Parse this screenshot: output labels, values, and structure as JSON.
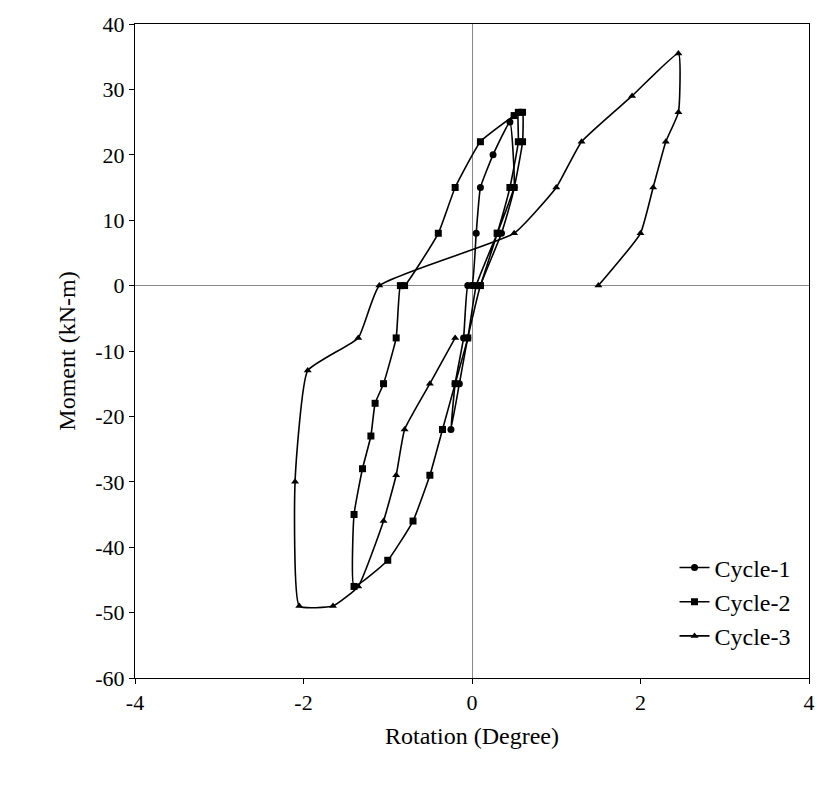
{
  "chart_data": {
    "type": "line",
    "x_label": "Rotation (Degree)",
    "y_label": "Moment (kN-m)",
    "xlim": [
      -4,
      4
    ],
    "xticks": [
      -4,
      -2,
      0,
      2,
      4
    ],
    "ylim": [
      -60,
      40
    ],
    "yticks": [
      -60,
      -50,
      -40,
      -30,
      -20,
      -10,
      0,
      10,
      20,
      30,
      40
    ],
    "grid": false,
    "legend": "bottom right",
    "series": [
      {
        "name": "Cycle-1",
        "color": "#000000",
        "marker": "circle",
        "line_style": "solid",
        "x": [
          0.0,
          0.05,
          0.1,
          0.25,
          0.45,
          0.5,
          0.35,
          0.1,
          -0.05,
          -0.15,
          -0.25,
          -0.2,
          -0.1,
          -0.05,
          0.0
        ],
        "values": [
          0,
          8,
          15,
          20,
          25,
          15,
          8,
          0,
          -8,
          -15,
          -22,
          -15,
          -8,
          0,
          0
        ]
      },
      {
        "name": "Cycle-2",
        "color": "#000000",
        "marker": "square",
        "line_style": "solid",
        "x": [
          0.1,
          0.3,
          0.45,
          0.55,
          0.55,
          0.6,
          0.6,
          0.5,
          0.3,
          0.05,
          -0.05,
          -0.2,
          -0.35,
          -0.5,
          -0.7,
          -1.0,
          -1.4,
          -1.4,
          -1.3,
          -1.2,
          -1.15,
          -1.05,
          -0.9,
          -0.85,
          -0.8,
          -0.4,
          -0.2,
          0.1,
          0.5
        ],
        "values": [
          0,
          8,
          15,
          22,
          26.5,
          26.5,
          22,
          15,
          8,
          0,
          -8,
          -15,
          -22,
          -29,
          -36,
          -42,
          -46,
          -35,
          -28,
          -23,
          -18,
          -15,
          -8,
          0,
          0,
          8,
          15,
          22,
          26
        ]
      },
      {
        "name": "Cycle-3",
        "color": "#000000",
        "marker": "triangle-up",
        "line_style": "solid",
        "x": [
          -0.2,
          -0.5,
          -0.8,
          -0.9,
          -1.05,
          -1.35,
          -1.65,
          -2.05,
          -2.1,
          -1.95,
          -1.35,
          -1.1,
          0.5,
          1.0,
          1.3,
          1.9,
          2.45,
          2.45,
          2.3,
          2.15,
          2.0,
          1.5
        ],
        "values": [
          -8,
          -15,
          -22,
          -29,
          -36,
          -46,
          -49,
          -49,
          -30,
          -13,
          -8,
          0,
          8,
          15,
          22,
          29,
          35.5,
          26.5,
          22,
          15,
          8,
          0
        ]
      }
    ]
  }
}
